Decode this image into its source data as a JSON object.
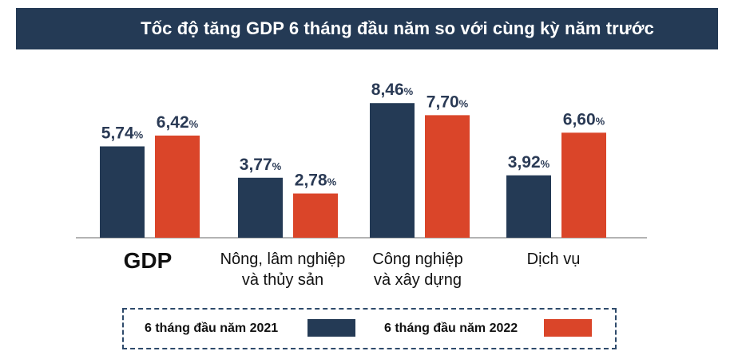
{
  "chart_data": {
    "type": "bar",
    "title": "Tốc độ tăng GDP 6 tháng đầu năm so với cùng kỳ năm trước",
    "categories": [
      "GDP",
      "Nông, lâm nghiệp\nvà thủy sản",
      "Công nghiệp\nvà xây dựng",
      "Dịch vụ"
    ],
    "series": [
      {
        "name": "6 tháng đầu năm 2021",
        "color": "#243a55",
        "values": [
          5.74,
          3.77,
          8.46,
          3.92
        ],
        "labels": [
          "5,74",
          "3,77",
          "8,46",
          "3,92"
        ]
      },
      {
        "name": "6 tháng đầu năm 2022",
        "color": "#da4529",
        "values": [
          6.42,
          2.78,
          7.7,
          6.6
        ],
        "labels": [
          "6,42",
          "2,78",
          "7,70",
          "6,60"
        ]
      }
    ],
    "unit": "%",
    "ylim": [
      0,
      9
    ],
    "xlabel": "",
    "ylabel": "",
    "legend_position": "bottom"
  }
}
